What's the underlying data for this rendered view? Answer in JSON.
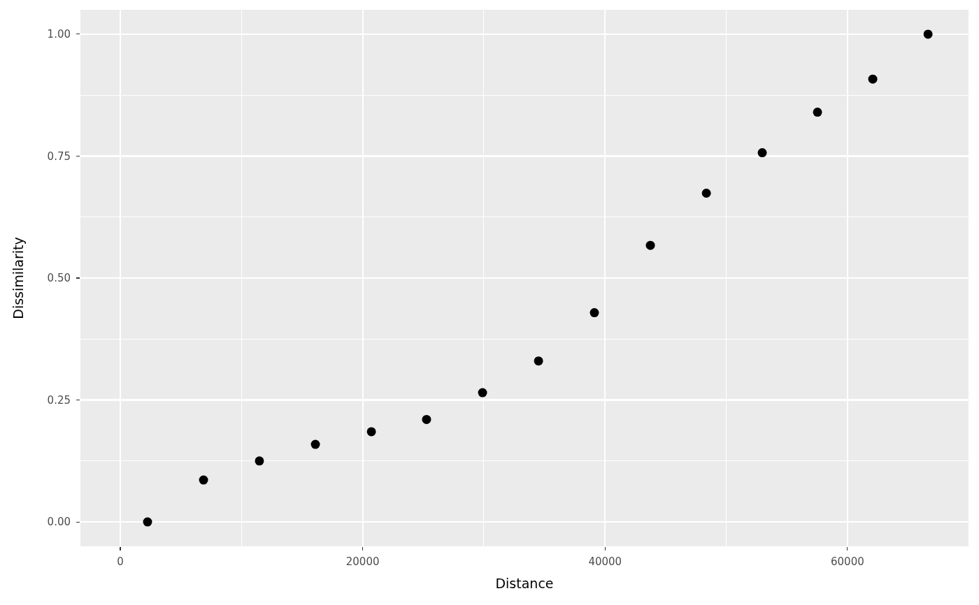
{
  "chart_data": {
    "type": "scatter",
    "xlabel": "Distance",
    "ylabel": "Dissimilarity",
    "x": [
      2250,
      6870,
      11480,
      16100,
      20720,
      25270,
      29890,
      34510,
      39120,
      43740,
      48360,
      52970,
      57530,
      62090,
      66650
    ],
    "values": [
      0.0,
      0.086,
      0.125,
      0.159,
      0.185,
      0.21,
      0.265,
      0.33,
      0.429,
      0.567,
      0.674,
      0.757,
      0.84,
      0.908,
      1.0
    ],
    "color": "#000000",
    "marker": "circle",
    "xlim": [
      -3290,
      69990
    ],
    "ylim": [
      -0.05,
      1.05
    ],
    "xticks": [
      0,
      20000,
      40000,
      60000
    ],
    "yticks": [
      {
        "value": 0,
        "label": "0.00"
      },
      {
        "value": 0.25,
        "label": "0.25"
      },
      {
        "value": 0.5,
        "label": "0.50"
      },
      {
        "value": 0.75,
        "label": "0.75"
      },
      {
        "value": 1,
        "label": "1.00"
      }
    ],
    "grid": true
  }
}
